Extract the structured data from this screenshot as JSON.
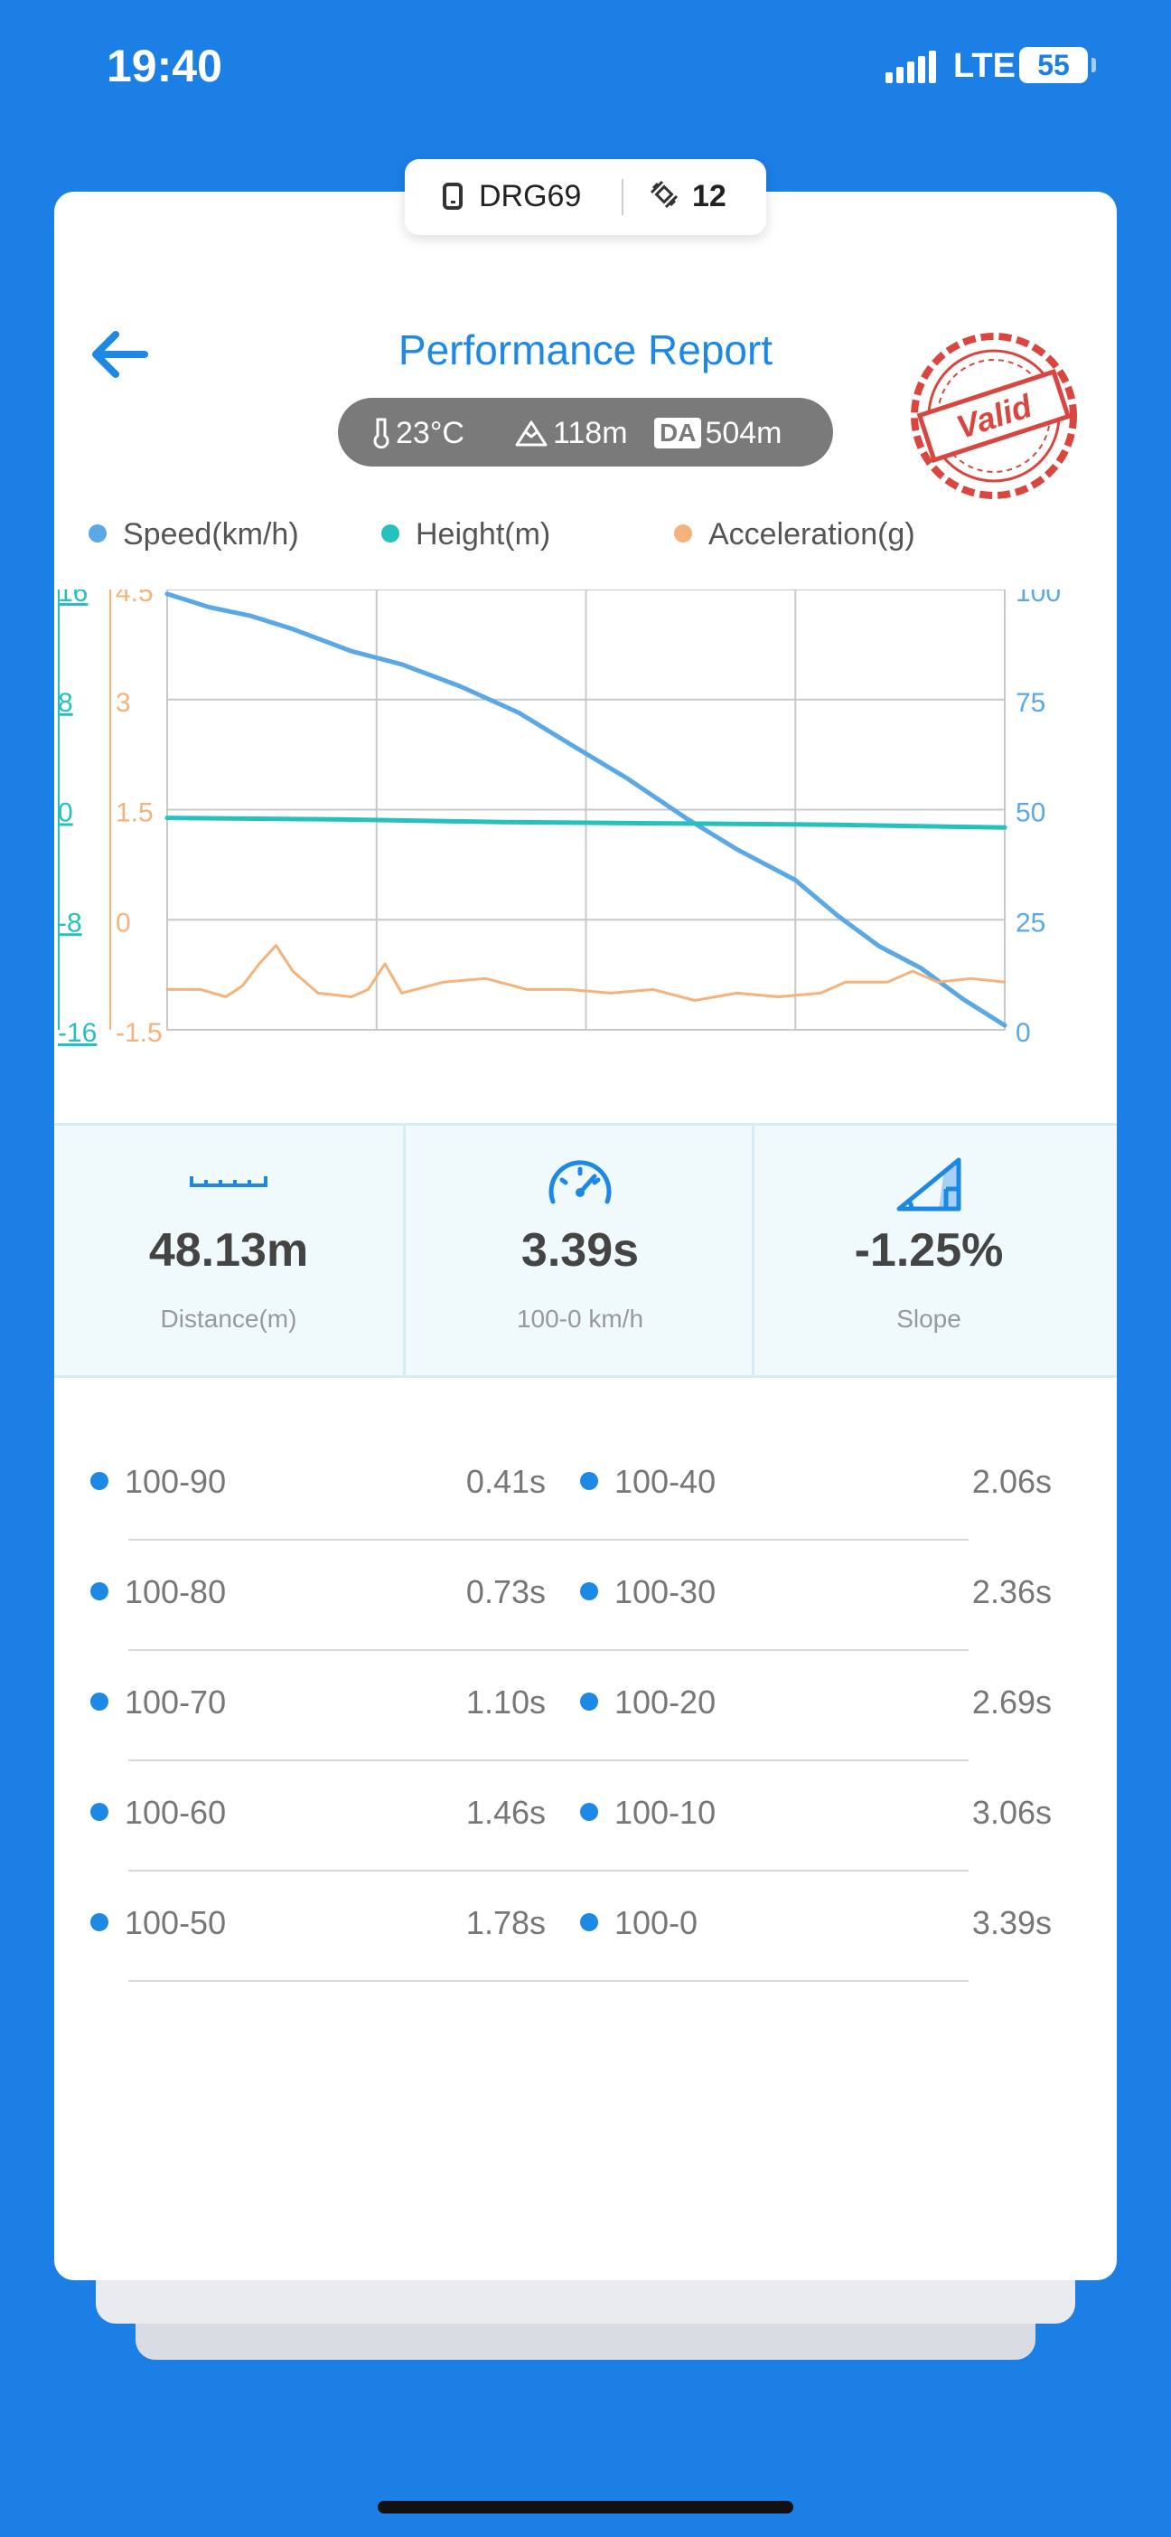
{
  "status_bar": {
    "time": "19:40",
    "network": "LTE",
    "battery": "55"
  },
  "device": {
    "name": "DRG69",
    "satellites": "12"
  },
  "header": {
    "title": "Performance Report",
    "stamp": "Valid"
  },
  "conditions": {
    "temperature": "23°C",
    "altitude": "118m",
    "density_altitude_badge": "DA",
    "density_altitude": "504m"
  },
  "legend": [
    {
      "label": "Speed(km/h)",
      "color": "#5aa8e6"
    },
    {
      "label": "Height(m)",
      "color": "#27c1bd"
    },
    {
      "label": "Acceleration(g)",
      "color": "#f5b27a"
    }
  ],
  "chart_data": {
    "type": "line",
    "axes": {
      "height_ticks": [
        "16",
        "8",
        "0",
        "-8",
        "-16"
      ],
      "height_range": [
        -16,
        16
      ],
      "accel_ticks": [
        "4.5",
        "3",
        "1.5",
        "0",
        "-1.5"
      ],
      "accel_range": [
        -1.5,
        4.5
      ],
      "speed_ticks": [
        "100",
        "75",
        "50",
        "25",
        "0"
      ],
      "speed_range": [
        0,
        100
      ]
    },
    "x_range": [
      0,
      100
    ],
    "grid": true,
    "series": [
      {
        "name": "Speed(km/h)",
        "axis": "speed",
        "color": "#5aa8e6",
        "points": [
          [
            0,
            99
          ],
          [
            5,
            96
          ],
          [
            10,
            94
          ],
          [
            15,
            91
          ],
          [
            22,
            86
          ],
          [
            28,
            83
          ],
          [
            35,
            78
          ],
          [
            42,
            72
          ],
          [
            48,
            65
          ],
          [
            55,
            57
          ],
          [
            62,
            48
          ],
          [
            68,
            41
          ],
          [
            75,
            34
          ],
          [
            80,
            26
          ],
          [
            85,
            19
          ],
          [
            90,
            14
          ],
          [
            95,
            7
          ],
          [
            100,
            1
          ]
        ]
      },
      {
        "name": "Height(m)",
        "axis": "height",
        "color": "#27c1bd",
        "points": [
          [
            0,
            -0.6
          ],
          [
            20,
            -0.7
          ],
          [
            40,
            -0.9
          ],
          [
            60,
            -1.0
          ],
          [
            80,
            -1.1
          ],
          [
            100,
            -1.3
          ]
        ]
      },
      {
        "name": "Acceleration(g)",
        "axis": "accel",
        "color": "#f5b27a",
        "points": [
          [
            0,
            -0.95
          ],
          [
            4,
            -0.95
          ],
          [
            7,
            -1.05
          ],
          [
            9,
            -0.9
          ],
          [
            11,
            -0.6
          ],
          [
            13,
            -0.35
          ],
          [
            15,
            -0.7
          ],
          [
            18,
            -1.0
          ],
          [
            22,
            -1.05
          ],
          [
            24,
            -0.95
          ],
          [
            26,
            -0.6
          ],
          [
            28,
            -1.0
          ],
          [
            33,
            -0.85
          ],
          [
            38,
            -0.8
          ],
          [
            43,
            -0.95
          ],
          [
            48,
            -0.95
          ],
          [
            53,
            -1.0
          ],
          [
            58,
            -0.95
          ],
          [
            63,
            -1.1
          ],
          [
            68,
            -1.0
          ],
          [
            73,
            -1.05
          ],
          [
            78,
            -1.0
          ],
          [
            81,
            -0.85
          ],
          [
            86,
            -0.85
          ],
          [
            89,
            -0.7
          ],
          [
            92,
            -0.85
          ],
          [
            96,
            -0.8
          ],
          [
            100,
            -0.85
          ]
        ]
      }
    ]
  },
  "stats": [
    {
      "value": "48.13m",
      "label": "Distance(m)",
      "icon": "ruler-icon"
    },
    {
      "value": "3.39s",
      "label": "100-0 km/h",
      "icon": "speedometer-icon"
    },
    {
      "value": "-1.25%",
      "label": "Slope",
      "icon": "slope-icon"
    }
  ],
  "splits": [
    {
      "left": {
        "name": "100-90",
        "time": "0.41s"
      },
      "right": {
        "name": "100-40",
        "time": "2.06s"
      }
    },
    {
      "left": {
        "name": "100-80",
        "time": "0.73s"
      },
      "right": {
        "name": "100-30",
        "time": "2.36s"
      }
    },
    {
      "left": {
        "name": "100-70",
        "time": "1.10s"
      },
      "right": {
        "name": "100-20",
        "time": "2.69s"
      }
    },
    {
      "left": {
        "name": "100-60",
        "time": "1.46s"
      },
      "right": {
        "name": "100-10",
        "time": "3.06s"
      }
    },
    {
      "left": {
        "name": "100-50",
        "time": "1.78s"
      },
      "right": {
        "name": "100-0",
        "time": "3.39s"
      }
    }
  ]
}
